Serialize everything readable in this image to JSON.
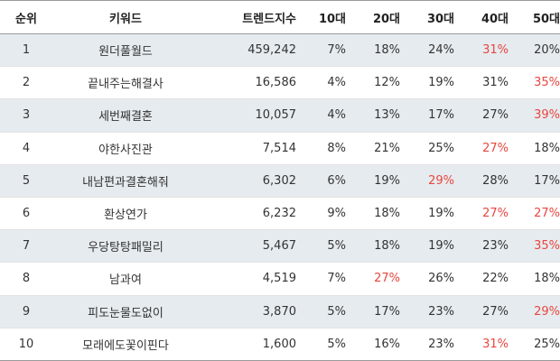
{
  "table": {
    "headers": [
      "순위",
      "키워드",
      "트렌드지수",
      "10대",
      "20대",
      "30대",
      "40대",
      "50대"
    ],
    "highlight_color": "#e8463e",
    "rows": [
      {
        "rank": "1",
        "keyword": "원더풀월드",
        "index": "459,242",
        "a10": "7%",
        "a20": "18%",
        "a30": "24%",
        "a40": "31%",
        "a50": "20%",
        "hi": [
          "a40"
        ]
      },
      {
        "rank": "2",
        "keyword": "끝내주는해결사",
        "index": "16,586",
        "a10": "4%",
        "a20": "12%",
        "a30": "19%",
        "a40": "31%",
        "a50": "35%",
        "hi": [
          "a50"
        ]
      },
      {
        "rank": "3",
        "keyword": "세번째결혼",
        "index": "10,057",
        "a10": "4%",
        "a20": "13%",
        "a30": "17%",
        "a40": "27%",
        "a50": "39%",
        "hi": [
          "a50"
        ]
      },
      {
        "rank": "4",
        "keyword": "야한사진관",
        "index": "7,514",
        "a10": "8%",
        "a20": "21%",
        "a30": "25%",
        "a40": "27%",
        "a50": "18%",
        "hi": [
          "a40"
        ]
      },
      {
        "rank": "5",
        "keyword": "내남편과결혼해줘",
        "index": "6,302",
        "a10": "6%",
        "a20": "19%",
        "a30": "29%",
        "a40": "28%",
        "a50": "17%",
        "hi": [
          "a30"
        ]
      },
      {
        "rank": "6",
        "keyword": "환상연가",
        "index": "6,232",
        "a10": "9%",
        "a20": "18%",
        "a30": "19%",
        "a40": "27%",
        "a50": "27%",
        "hi": [
          "a40",
          "a50"
        ]
      },
      {
        "rank": "7",
        "keyword": "우당탕탕패밀리",
        "index": "5,467",
        "a10": "5%",
        "a20": "18%",
        "a30": "19%",
        "a40": "23%",
        "a50": "35%",
        "hi": [
          "a50"
        ]
      },
      {
        "rank": "8",
        "keyword": "남과여",
        "index": "4,519",
        "a10": "7%",
        "a20": "27%",
        "a30": "26%",
        "a40": "22%",
        "a50": "18%",
        "hi": [
          "a20"
        ]
      },
      {
        "rank": "9",
        "keyword": "피도눈물도없이",
        "index": "3,870",
        "a10": "5%",
        "a20": "17%",
        "a30": "23%",
        "a40": "27%",
        "a50": "29%",
        "hi": [
          "a50"
        ]
      },
      {
        "rank": "10",
        "keyword": "모래에도꽃이핀다",
        "index": "1,600",
        "a10": "5%",
        "a20": "16%",
        "a30": "23%",
        "a40": "31%",
        "a50": "25%",
        "hi": [
          "a40"
        ]
      }
    ]
  }
}
